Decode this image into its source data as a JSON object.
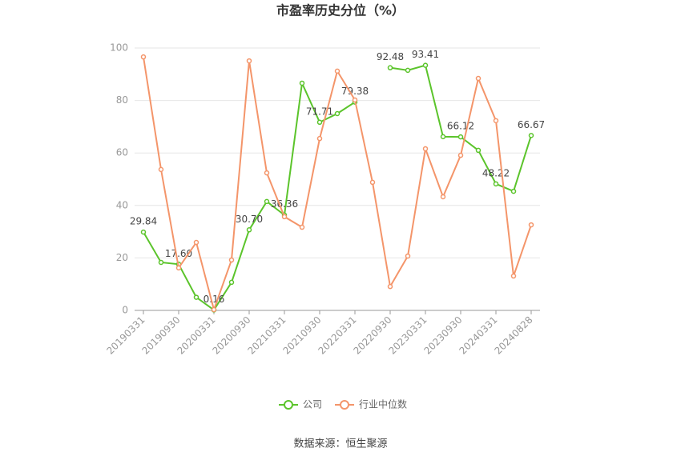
{
  "chart_data": {
    "type": "line",
    "title": "市盈率历史分位（%）",
    "categories": [
      "20190331",
      null,
      "20190930",
      null,
      "20200331",
      null,
      "20200930",
      null,
      "20210331",
      null,
      "20210930",
      null,
      "20220331",
      null,
      "20220930",
      null,
      "20230331",
      null,
      "20230930",
      null,
      "20240331",
      null,
      "20240828"
    ],
    "series": [
      {
        "name": "公司",
        "color": "#5bc42b",
        "values": [
          29.84,
          18.3,
          17.6,
          5.0,
          0.16,
          10.7,
          30.7,
          41.5,
          36.36,
          86.6,
          71.71,
          75.0,
          79.38,
          null,
          92.48,
          91.5,
          93.41,
          66.2,
          66.12,
          61.0,
          48.22,
          45.4,
          66.67
        ],
        "value_labels": [
          "29.84",
          null,
          "17.60",
          null,
          "0.16",
          null,
          "30.70",
          null,
          "36.36",
          null,
          "71.71",
          null,
          "79.38",
          null,
          "92.48",
          null,
          "93.41",
          null,
          "66.12",
          null,
          "48.22",
          null,
          "66.67"
        ]
      },
      {
        "name": "行业中位数",
        "color": "#f4956a",
        "values": [
          96.6,
          53.7,
          16.2,
          25.9,
          0.3,
          19.2,
          95.1,
          52.4,
          35.7,
          31.7,
          65.5,
          91.2,
          80.2,
          48.8,
          9.1,
          20.7,
          61.6,
          43.3,
          59.1,
          88.4,
          72.3,
          13.1,
          32.6
        ]
      }
    ],
    "ylim": [
      0,
      100
    ],
    "yticks": [
      0,
      20,
      40,
      60,
      80,
      100
    ],
    "grid": true,
    "source": "数据来源：恒生聚源"
  }
}
